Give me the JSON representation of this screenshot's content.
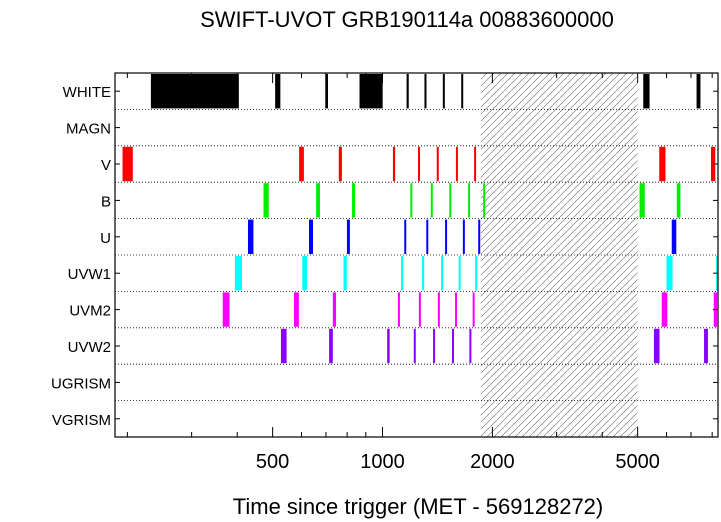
{
  "chart_data": {
    "type": "timeline",
    "title": "SWIFT-UVOT GRB190114a 00883600000",
    "xlabel": "Time since trigger (MET - 569128272)",
    "x_scale": "log",
    "xlim": [
      185,
      8300
    ],
    "x_major_ticks": [
      500,
      1000,
      2000,
      5000
    ],
    "x_minor_ticks": [
      200,
      300,
      400,
      600,
      700,
      800,
      900,
      3000,
      4000,
      6000,
      7000,
      8000
    ],
    "filters": [
      "WHITE",
      "MAGN",
      "V",
      "B",
      "U",
      "UVW1",
      "UVM2",
      "UVW2",
      "UGRISM",
      "VGRISM"
    ],
    "gap": {
      "start": 1860,
      "end": 5000,
      "pattern": "hatched"
    },
    "grid": "dotted horizontal",
    "series": [
      {
        "filter": "WHITE",
        "color": "#000000",
        "intervals": [
          [
            232,
            404
          ],
          [
            508,
            525
          ],
          [
            697,
            709
          ],
          [
            865,
            1001
          ],
          [
            1164,
            1180
          ],
          [
            1303,
            1316
          ],
          [
            1463,
            1476
          ],
          [
            1643,
            1656
          ],
          [
            5180,
            5390
          ],
          [
            7250,
            7430
          ]
        ]
      },
      {
        "filter": "MAGN",
        "color": "#000000",
        "intervals": []
      },
      {
        "filter": "V",
        "color": "#ff0000",
        "intervals": [
          [
            194,
            207
          ],
          [
            591,
            609
          ],
          [
            759,
            774
          ],
          [
            1068,
            1083
          ],
          [
            1251,
            1266
          ],
          [
            1408,
            1421
          ],
          [
            1589,
            1601
          ],
          [
            1782,
            1796
          ],
          [
            5730,
            5960
          ],
          [
            7940,
            8160
          ]
        ]
      },
      {
        "filter": "B",
        "color": "#00ee00",
        "intervals": [
          [
            472,
            488
          ],
          [
            658,
            674
          ],
          [
            825,
            841
          ],
          [
            1192,
            1205
          ],
          [
            1356,
            1369
          ],
          [
            1524,
            1537
          ],
          [
            1716,
            1729
          ],
          [
            1887,
            1899
          ],
          [
            5060,
            5230
          ],
          [
            6400,
            6550
          ]
        ]
      },
      {
        "filter": "U",
        "color": "#0000ff",
        "intervals": [
          [
            428,
            443
          ],
          [
            629,
            645
          ],
          [
            799,
            814
          ],
          [
            1147,
            1160
          ],
          [
            1318,
            1331
          ],
          [
            1484,
            1497
          ],
          [
            1660,
            1673
          ],
          [
            1829,
            1842
          ],
          [
            6200,
            6380
          ]
        ]
      },
      {
        "filter": "UVW1",
        "color": "#00ffff",
        "intervals": [
          [
            394,
            412
          ],
          [
            603,
            621
          ],
          [
            782,
            798
          ],
          [
            1124,
            1138
          ],
          [
            1284,
            1297
          ],
          [
            1447,
            1460
          ],
          [
            1616,
            1629
          ],
          [
            1794,
            1807
          ],
          [
            6000,
            6230
          ],
          [
            8200,
            8300
          ]
        ]
      },
      {
        "filter": "UVM2",
        "color": "#ff00ff",
        "intervals": [
          [
            365,
            381
          ],
          [
            572,
            590
          ],
          [
            731,
            746
          ],
          [
            1102,
            1116
          ],
          [
            1258,
            1271
          ],
          [
            1418,
            1431
          ],
          [
            1580,
            1594
          ],
          [
            1766,
            1779
          ],
          [
            5820,
            6030
          ],
          [
            8080,
            8250
          ]
        ]
      },
      {
        "filter": "UVW2",
        "color": "#8800ff",
        "intervals": [
          [
            527,
            546
          ],
          [
            714,
            731
          ],
          [
            1030,
            1046
          ],
          [
            1218,
            1232
          ],
          [
            1376,
            1390
          ],
          [
            1550,
            1563
          ],
          [
            1730,
            1744
          ],
          [
            5540,
            5740
          ],
          [
            7600,
            7790
          ]
        ]
      },
      {
        "filter": "UGRISM",
        "color": "#000000",
        "intervals": []
      },
      {
        "filter": "VGRISM",
        "color": "#000000",
        "intervals": []
      }
    ]
  }
}
